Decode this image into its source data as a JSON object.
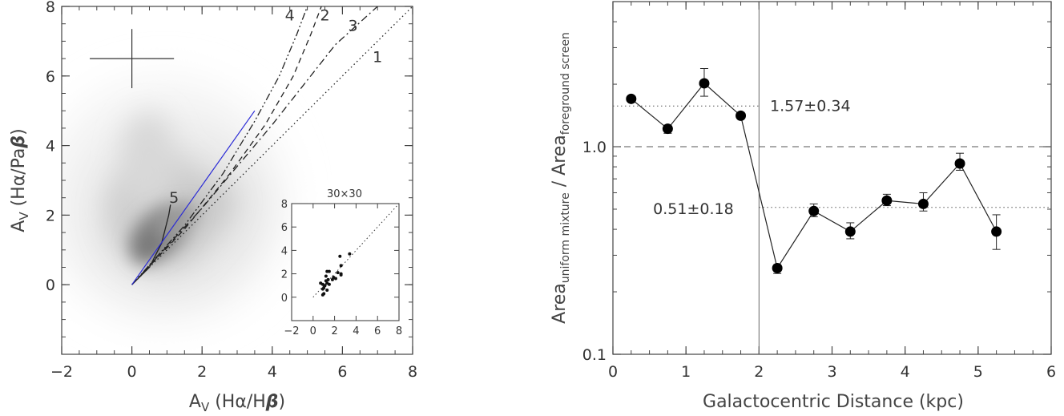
{
  "chart_data": [
    {
      "type": "scatter",
      "panel": "left",
      "xlabel": "A_V (Hα/Hβ)",
      "ylabel": "A_V (Hα/Paβ)",
      "xlabel_parts": {
        "main": "A",
        "sub": "V",
        "open": " (Hα/H",
        "beta": "β",
        "close": ")"
      },
      "ylabel_parts": {
        "main": "A",
        "sub": "V",
        "open": " (Hα/Pa",
        "beta": "β",
        "close": ")"
      },
      "xlim": [
        -2,
        8
      ],
      "ylim": [
        -2,
        8
      ],
      "xticks": [
        "−2",
        "0",
        "2",
        "4",
        "6",
        "8"
      ],
      "yticks": [
        "0",
        "2",
        "4",
        "6",
        "8"
      ],
      "density_note": "grey 2D histogram of pixel values concentrated near the 1:1 relation",
      "error_cross": {
        "center": [
          0,
          6.5
        ],
        "xerr": 1.2,
        "yerr": 0.85
      },
      "curves": [
        {
          "label": "1",
          "style": "dotted",
          "points": [
            [
              0,
              0
            ],
            [
              8,
              8
            ]
          ]
        },
        {
          "label": "2",
          "style": "dashed",
          "points": [
            [
              0,
              0
            ],
            [
              1.5,
              1.6
            ],
            [
              2.8,
              3.2
            ],
            [
              3.8,
              4.6
            ],
            [
              4.6,
              6.0
            ],
            [
              5.1,
              7.2
            ],
            [
              5.4,
              8.0
            ]
          ]
        },
        {
          "label": "3",
          "style": "dash-dot",
          "points": [
            [
              0,
              0
            ],
            [
              2,
              2.2
            ],
            [
              4,
              4.6
            ],
            [
              5.8,
              6.9
            ],
            [
              7,
              8.0
            ]
          ]
        },
        {
          "label": "4",
          "style": "dash-dot-dot",
          "points": [
            [
              0,
              0
            ],
            [
              1.5,
              1.7
            ],
            [
              2.6,
              3.2
            ],
            [
              3.5,
              4.7
            ],
            [
              4.2,
              6.0
            ],
            [
              4.7,
              7.2
            ],
            [
              5.0,
              8.0
            ]
          ]
        },
        {
          "label": "5",
          "style": "solid",
          "points": [
            [
              0,
              0
            ],
            [
              0.5,
              0.5
            ],
            [
              0.85,
              1.2
            ],
            [
              1.05,
              2.0
            ],
            [
              1.1,
              2.3
            ]
          ]
        },
        {
          "label": "",
          "style": "solid-blue",
          "points": [
            [
              0,
              0
            ],
            [
              3.5,
              5.0
            ]
          ]
        }
      ],
      "curve_labels": [
        {
          "text": "4",
          "at": [
            4.5,
            7.6
          ]
        },
        {
          "text": "2",
          "at": [
            5.5,
            7.6
          ]
        },
        {
          "text": "3",
          "at": [
            6.3,
            7.3
          ]
        },
        {
          "text": "1",
          "at": [
            7.0,
            6.4
          ]
        },
        {
          "text": "5",
          "at": [
            1.2,
            2.35
          ]
        }
      ],
      "inset": {
        "title": "30×30",
        "xlim": [
          -2,
          8
        ],
        "ylim": [
          -2,
          8
        ],
        "xticks": [
          "−2",
          "0",
          "2",
          "4",
          "6",
          "8"
        ],
        "yticks": [
          "0",
          "2",
          "4",
          "6",
          "8"
        ],
        "points": [
          [
            0.7,
            1.2
          ],
          [
            0.9,
            1.1
          ],
          [
            0.9,
            0.7
          ],
          [
            1.0,
            0.8
          ],
          [
            1.1,
            1.0
          ],
          [
            1.2,
            1.4
          ],
          [
            1.3,
            1.2
          ],
          [
            1.4,
            1.5
          ],
          [
            1.5,
            1.1
          ],
          [
            1.3,
            0.6
          ],
          [
            1.0,
            0.3
          ],
          [
            0.9,
            0.2
          ],
          [
            1.5,
            2.2
          ],
          [
            1.3,
            2.2
          ],
          [
            1.8,
            1.5
          ],
          [
            1.9,
            1.7
          ],
          [
            2.1,
            1.6
          ],
          [
            2.3,
            2.1
          ],
          [
            2.6,
            2.0
          ],
          [
            2.6,
            1.9
          ],
          [
            2.5,
            3.5
          ],
          [
            2.6,
            2.7
          ],
          [
            3.4,
            3.7
          ],
          [
            1.2,
            1.8
          ]
        ]
      }
    },
    {
      "type": "line",
      "panel": "right",
      "xlabel": "Galactocentric Distance (kpc)",
      "ylabel": "Area_uniform mixture / Area_foreground screen",
      "ylabel_parts": {
        "a": "Area",
        "a_sub": "uniform mixture",
        "slash": " / ",
        "b": "Area",
        "b_sub": "foreground screen"
      },
      "xlim": [
        0,
        6
      ],
      "ylim": [
        0.1,
        5
      ],
      "yscale": "log",
      "xticks": [
        "0",
        "1",
        "2",
        "3",
        "4",
        "5",
        "6"
      ],
      "yticks": [
        {
          "label": "0.1",
          "value": 0.1
        },
        {
          "label": "1.0",
          "value": 1.0
        }
      ],
      "x": [
        0.25,
        0.75,
        1.25,
        1.75,
        2.25,
        2.75,
        3.25,
        3.75,
        4.25,
        4.75,
        5.25
      ],
      "values": [
        1.7,
        1.22,
        2.02,
        1.41,
        0.26,
        0.49,
        0.39,
        0.55,
        0.53,
        0.83,
        0.39
      ],
      "err_high": [
        1.7,
        1.27,
        2.38,
        1.45,
        0.27,
        0.53,
        0.43,
        0.59,
        0.6,
        0.93,
        0.47
      ],
      "err_low": [
        1.7,
        1.16,
        1.75,
        1.38,
        0.245,
        0.46,
        0.36,
        0.52,
        0.49,
        0.77,
        0.32
      ],
      "vline_x": 2.0,
      "hlines": [
        {
          "value": 1.0,
          "style": "dashed",
          "from": 0,
          "to": 6
        },
        {
          "value": 1.57,
          "style": "dotted",
          "from": 0,
          "to": 2.0
        },
        {
          "value": 0.51,
          "style": "dotted",
          "from": 2.0,
          "to": 6
        }
      ],
      "annotations": [
        {
          "text": "1.57±0.34",
          "at": [
            2.15,
            1.57
          ]
        },
        {
          "text": "0.51±0.18",
          "at": [
            0.55,
            0.51
          ]
        }
      ]
    }
  ]
}
